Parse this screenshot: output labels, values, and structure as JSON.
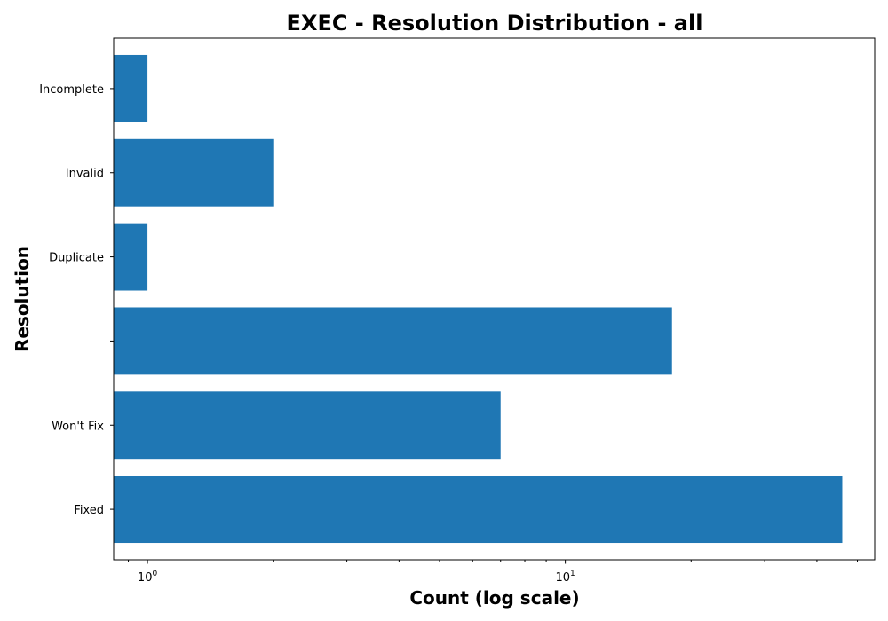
{
  "chart_data": {
    "type": "bar",
    "orientation": "horizontal",
    "title": "EXEC - Resolution Distribution - all",
    "xlabel": "Count (log scale)",
    "ylabel": "Resolution",
    "x_scale": "log",
    "xlim": [
      0.83,
      55
    ],
    "categories": [
      "Fixed",
      "Won't Fix",
      "",
      "Duplicate",
      "Invalid",
      "Incomplete"
    ],
    "values": [
      46,
      7,
      18,
      1,
      2,
      1
    ],
    "x_ticks": [
      {
        "base": "10",
        "exp": "0",
        "value": 1
      },
      {
        "base": "10",
        "exp": "1",
        "value": 10
      }
    ],
    "bar_color": "#1f77b4",
    "grid": false,
    "legend": "none"
  }
}
